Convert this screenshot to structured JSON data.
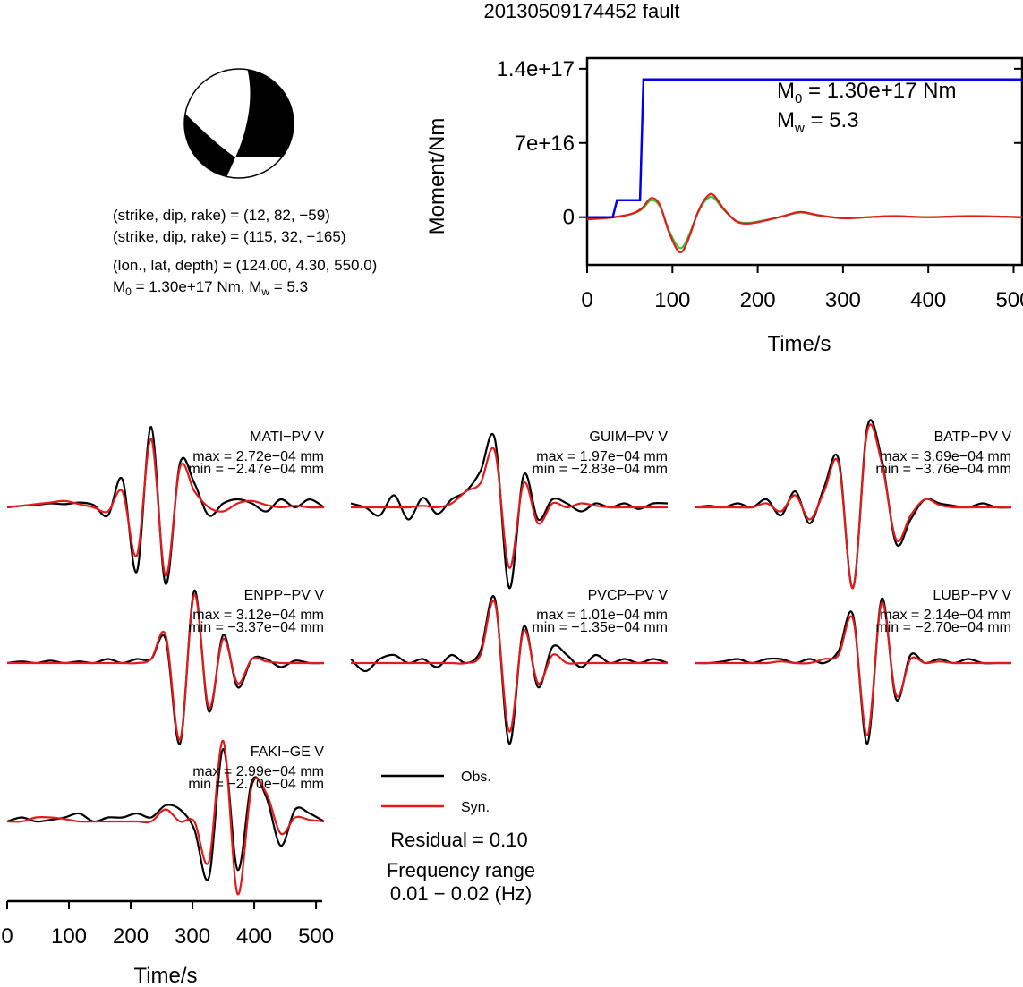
{
  "title": "20130509174452 fault",
  "beachball": {
    "nodal_plane_1": "(strike, dip, rake) = (12, 82, −59)",
    "nodal_plane_2": "(strike, dip, rake) = (115, 32, −165)",
    "location": "(lon., lat, depth) = (124.00, 4.30, 550.0)",
    "magnitude_prefix": "M",
    "magnitude_sub0": "0",
    "magnitude_mid": " = 1.30e+17 Nm, M",
    "magnitude_subw": "w",
    "magnitude_suffix": " = 5.3"
  },
  "colors": {
    "observed": "#000000",
    "synthetic": "#e31a1c",
    "moment": "#0000ee",
    "stf_green": "#33cc33"
  },
  "chart_data": [
    {
      "type": "line",
      "name": "moment-function",
      "xlabel": "Time/s",
      "ylabel": "Moment/Nm",
      "xlim": [
        0,
        510
      ],
      "ylim": [
        -4.5e+16,
        1.5e+17
      ],
      "xticks": [
        "0",
        "100",
        "200",
        "300",
        "400",
        "500"
      ],
      "yticks": [
        "0",
        "7e+16",
        "1.4e+17"
      ],
      "annot_m0_prefix": "M",
      "annot_m0_sub": "0",
      "annot_m0_value": " = 1.30e+17 Nm",
      "annot_mw_prefix": "M",
      "annot_mw_sub": "w",
      "annot_mw_value": " = 5.3",
      "moment_curve": {
        "x": [
          0,
          30,
          35,
          62,
          66,
          510
        ],
        "y": [
          0,
          0,
          1.6e+16,
          1.6e+16,
          1.3e+17,
          1.3e+17
        ]
      },
      "stf_curve": {
        "x": [
          0,
          20,
          40,
          55,
          65,
          75,
          85,
          95,
          105,
          112,
          120,
          130,
          140,
          148,
          160,
          175,
          190,
          210,
          230,
          250,
          270,
          300,
          330,
          360,
          400,
          450,
          510
        ],
        "y": [
          -2000000000000000.0,
          -1000000000000000.0,
          1000000000000000.0,
          4000000000000000.0,
          9000000000000000.0,
          1.8e+16,
          1.2e+16,
          -1.2e+16,
          -3e+16,
          -3.2e+16,
          -1.8e+16,
          5000000000000000.0,
          1.9e+16,
          2.1e+16,
          8000000000000000.0,
          -4000000000000000.0,
          -6000000000000000.0,
          -3000000000000000.0,
          1000000000000000.0,
          5000000000000000.0,
          2000000000000000.0,
          -1000000000000000.0,
          0,
          1000000000000000.0,
          0,
          1000000000000000.0,
          0
        ]
      }
    }
  ],
  "stations": [
    {
      "name": "MATI−PV V",
      "max": "max = 2.72e−04 mm",
      "min": "min = −2.47e−04 mm",
      "obs": [
        0,
        0.02,
        0.03,
        0.05,
        0.04,
        0.06,
        0.03,
        -0.1,
        0.35,
        -0.8,
        1.0,
        -0.95,
        0.55,
        0.3,
        -0.1,
        0.05,
        0.1,
        0.05,
        -0.05,
        0.1,
        0.0,
        0.1,
        0.0
      ],
      "syn": [
        0,
        0.02,
        0.04,
        0.06,
        0.08,
        0.04,
        0.0,
        -0.05,
        0.2,
        -0.6,
        0.85,
        -0.85,
        0.5,
        0.2,
        0.0,
        -0.05,
        0.05,
        0.08,
        0.03,
        0.0,
        0.02,
        0.0,
        0.0
      ]
    },
    {
      "name": "GUIM−PV V",
      "max": "max = 1.97e−04 mm",
      "min": "min = −2.83e−04 mm",
      "obs": [
        0.05,
        0.0,
        -0.1,
        0.15,
        -0.15,
        0.12,
        -0.08,
        0.1,
        0.2,
        0.45,
        0.85,
        -1.0,
        0.4,
        -0.15,
        0.1,
        0.05,
        -0.05,
        0.05,
        0.0,
        0.05,
        -0.02,
        0.05,
        0.05
      ],
      "syn": [
        0.0,
        0.0,
        0.0,
        0.0,
        0.0,
        0.02,
        0.0,
        0.05,
        0.2,
        0.3,
        0.7,
        -0.75,
        0.3,
        -0.2,
        0.05,
        0.0,
        0.05,
        0.02,
        0.0,
        0.0,
        0.0,
        0.0,
        0.0
      ]
    },
    {
      "name": "BATP−PV V",
      "max": "max = 3.69e−04 mm",
      "min": "min = −3.76e−04 mm",
      "obs": [
        0.0,
        0.02,
        0.0,
        0.05,
        0.0,
        0.1,
        -0.1,
        0.2,
        -0.2,
        0.25,
        0.6,
        -1.0,
        1.0,
        0.6,
        -0.45,
        -0.15,
        0.1,
        0.05,
        0.02,
        0.0,
        0.05,
        0.0,
        0.0
      ],
      "syn": [
        0.0,
        0.0,
        0.0,
        0.0,
        0.0,
        0.05,
        -0.05,
        0.15,
        -0.15,
        0.2,
        0.55,
        -1.0,
        0.95,
        0.55,
        -0.4,
        -0.1,
        0.1,
        0.03,
        0.0,
        0.0,
        0.0,
        0.0,
        0.0
      ]
    },
    {
      "name": "ENPP−PV V",
      "max": "max = 3.12e−04 mm",
      "min": "min = −3.37e−04 mm",
      "obs": [
        0.0,
        0.02,
        0.0,
        0.03,
        0.0,
        0.02,
        0.0,
        0.05,
        0.0,
        0.05,
        0.05,
        0.3,
        -1.0,
        0.9,
        -0.6,
        0.35,
        -0.3,
        0.05,
        0.05,
        -0.05,
        0.03,
        0.0,
        0.0
      ],
      "syn": [
        0.0,
        0.0,
        0.0,
        0.0,
        0.0,
        0.0,
        0.0,
        0.0,
        0.0,
        0.0,
        0.05,
        0.35,
        -0.95,
        0.85,
        -0.55,
        0.3,
        -0.25,
        0.05,
        0.02,
        0.0,
        0.0,
        0.0,
        0.0
      ]
    },
    {
      "name": "PVCP−PV V",
      "max": "max = 1.01e−04 mm",
      "min": "min = −1.35e−04 mm",
      "obs": [
        0.05,
        -0.1,
        0.05,
        0.1,
        0.0,
        0.05,
        -0.05,
        0.1,
        0.0,
        0.15,
        0.8,
        -1.0,
        0.45,
        -0.3,
        0.2,
        0.1,
        -0.05,
        0.1,
        0.0,
        0.05,
        0.0,
        0.05,
        0.0
      ],
      "syn": [
        0.0,
        0.0,
        0.0,
        0.0,
        0.0,
        0.0,
        0.0,
        0.0,
        0.0,
        0.1,
        0.75,
        -0.85,
        0.4,
        -0.25,
        0.1,
        0.0,
        0.0,
        0.0,
        0.0,
        0.0,
        0.0,
        0.0,
        0.0
      ]
    },
    {
      "name": "LUBP−PV V",
      "max": "max = 2.14e−04 mm",
      "min": "min = −2.70e−04 mm",
      "obs": [
        0.0,
        0.0,
        0.02,
        0.05,
        0.0,
        0.05,
        0.05,
        0.0,
        0.05,
        0.0,
        0.15,
        0.6,
        -1.0,
        0.8,
        -0.45,
        0.1,
        0.0,
        0.05,
        0.0,
        0.05,
        0.0,
        0.0,
        0.0
      ],
      "syn": [
        0.0,
        0.0,
        0.0,
        0.0,
        0.0,
        0.0,
        0.02,
        0.0,
        0.0,
        0.05,
        0.1,
        0.55,
        -0.9,
        0.75,
        -0.4,
        0.05,
        0.0,
        0.02,
        0.0,
        0.0,
        0.0,
        0.0,
        0.0
      ]
    },
    {
      "name": "FAKI−GE V",
      "max": "max = 2.99e−04 mm",
      "min": "min = −2.70e−04 mm",
      "obs": [
        0.0,
        0.05,
        0.0,
        0.02,
        0.05,
        0.1,
        0.0,
        0.05,
        0.05,
        0.1,
        0.05,
        0.2,
        0.15,
        -0.1,
        -0.7,
        0.9,
        -0.6,
        0.5,
        0.3,
        -0.3,
        0.15,
        0.1,
        0.0
      ],
      "syn": [
        0.0,
        0.0,
        0.05,
        0.05,
        0.03,
        0.0,
        0.0,
        0.0,
        0.0,
        0.0,
        0.0,
        0.15,
        0.0,
        0.0,
        -0.5,
        1.0,
        -0.9,
        0.45,
        0.35,
        -0.15,
        0.05,
        0.02,
        0.0
      ]
    }
  ],
  "bottom_axis": {
    "xlabel": "Time/s",
    "xticks": [
      "0",
      "100",
      "200",
      "300",
      "400",
      "500"
    ]
  },
  "legend": {
    "obs_label": "Obs.",
    "syn_label": "Syn."
  },
  "residual": "Residual = 0.10",
  "freq_title": "Frequency range",
  "freq_value": "0.01 − 0.02 (Hz)"
}
